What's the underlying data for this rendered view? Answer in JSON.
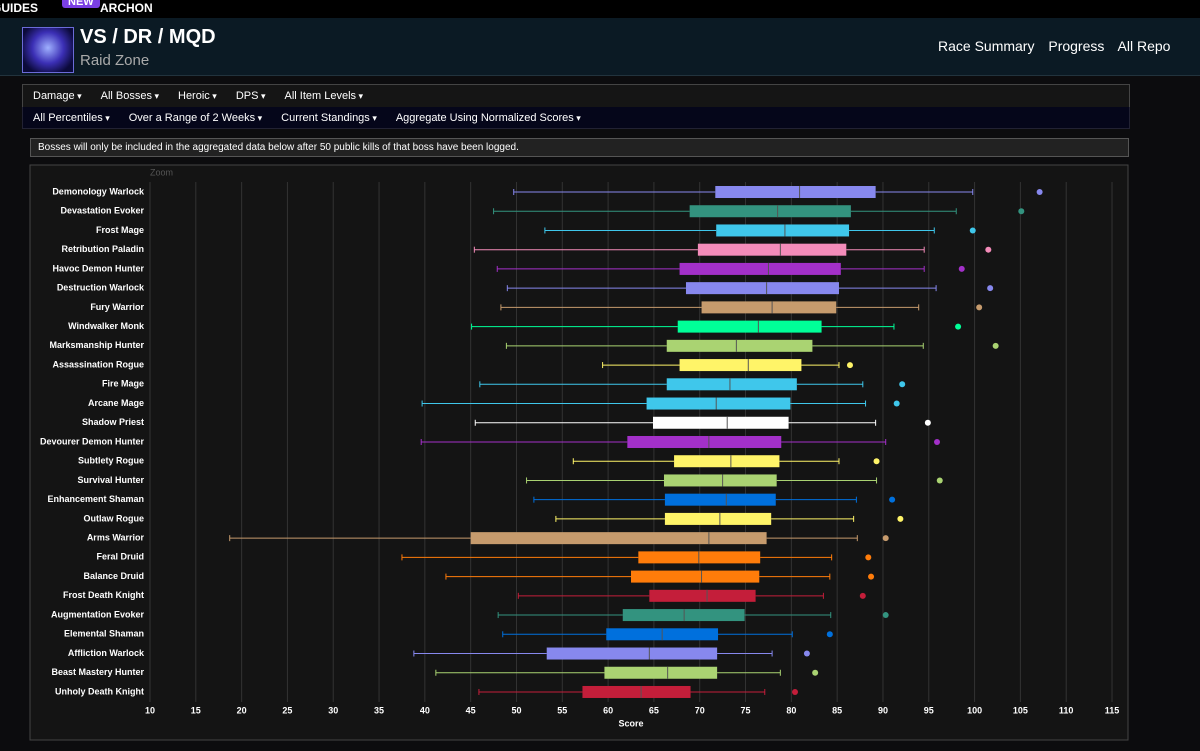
{
  "topbar": {
    "guides": "GUIDES",
    "badge": "NEW",
    "archon": "ARCHON"
  },
  "header": {
    "title": "VS / DR / MQD",
    "subtitle": "Raid Zone",
    "links": [
      "Race Summary",
      "Progress",
      "All Repo"
    ]
  },
  "filters": {
    "row1": [
      "Damage",
      "All Bosses",
      "Heroic",
      "DPS",
      "All Item Levels"
    ],
    "row2": [
      "All Percentiles",
      "Over a Range of 2 Weeks",
      "Current Standings",
      "Aggregate Using Normalized Scores"
    ]
  },
  "notice": "Bosses will only be included in the aggregated data below after 50 public kills of that boss have been logged.",
  "chart_data": {
    "type": "boxplot",
    "zoom_label": "Zoom",
    "x_label": "Score",
    "xlim": [
      10,
      116
    ],
    "xticks": [
      10,
      15,
      20,
      25,
      30,
      35,
      40,
      45,
      50,
      55,
      60,
      65,
      70,
      75,
      80,
      85,
      90,
      95,
      100,
      105,
      110,
      115
    ],
    "grid": true,
    "categories": [
      "Demonology Warlock",
      "Devastation Evoker",
      "Frost Mage",
      "Retribution Paladin",
      "Havoc Demon Hunter",
      "Destruction Warlock",
      "Fury Warrior",
      "Windwalker Monk",
      "Marksmanship Hunter",
      "Assassination Rogue",
      "Fire Mage",
      "Arcane Mage",
      "Shadow Priest",
      "Devourer Demon Hunter",
      "Subtlety Rogue",
      "Survival Hunter",
      "Enhancement Shaman",
      "Outlaw Rogue",
      "Arms Warrior",
      "Feral Druid",
      "Balance Druid",
      "Frost Death Knight",
      "Augmentation Evoker",
      "Elemental Shaman",
      "Affliction Warlock",
      "Beast Mastery Hunter",
      "Unholy Death Knight"
    ],
    "colors": [
      "#8788ee",
      "#33937f",
      "#3fc7eb",
      "#f48cba",
      "#a330c9",
      "#8788ee",
      "#c69b6d",
      "#00ff98",
      "#aad372",
      "#fff468",
      "#3fc7eb",
      "#3fc7eb",
      "#ffffff",
      "#a330c9",
      "#fff468",
      "#aad372",
      "#0070dd",
      "#fff468",
      "#c69b6d",
      "#ff7c0a",
      "#ff7c0a",
      "#c41e3a",
      "#33937f",
      "#0070dd",
      "#8788ee",
      "#aad372",
      "#c41e3a"
    ],
    "low": [
      49.7,
      47.5,
      53.1,
      45.4,
      47.9,
      49.0,
      48.3,
      45.1,
      48.9,
      59.4,
      46.0,
      39.7,
      45.5,
      39.6,
      56.2,
      51.1,
      51.9,
      54.3,
      18.7,
      37.5,
      42.3,
      50.2,
      48.0,
      48.5,
      38.8,
      41.2,
      45.9
    ],
    "q1": [
      71.7,
      68.9,
      71.8,
      69.8,
      67.8,
      68.5,
      70.2,
      67.6,
      66.4,
      67.8,
      66.4,
      64.2,
      64.9,
      62.1,
      67.2,
      66.1,
      66.2,
      66.2,
      45.0,
      63.3,
      62.5,
      64.5,
      61.6,
      59.8,
      53.3,
      59.6,
      57.2
    ],
    "median": [
      80.9,
      78.5,
      79.3,
      78.8,
      77.5,
      77.3,
      77.9,
      76.4,
      74.0,
      75.3,
      73.3,
      71.8,
      73.0,
      71.0,
      73.4,
      72.5,
      72.9,
      72.2,
      71.0,
      69.9,
      70.2,
      70.8,
      68.3,
      65.9,
      64.5,
      66.5,
      63.6
    ],
    "q3": [
      89.2,
      86.5,
      86.3,
      86.0,
      85.4,
      85.2,
      84.9,
      83.3,
      82.3,
      81.1,
      80.6,
      79.9,
      79.7,
      78.9,
      78.7,
      78.4,
      78.3,
      77.8,
      77.3,
      76.6,
      76.5,
      76.1,
      74.9,
      72.0,
      71.9,
      71.9,
      69.0
    ],
    "high": [
      99.8,
      98.0,
      95.6,
      94.5,
      94.5,
      95.8,
      93.9,
      91.2,
      94.4,
      85.2,
      87.8,
      88.1,
      89.2,
      90.3,
      85.2,
      89.3,
      87.1,
      86.8,
      87.2,
      84.4,
      84.2,
      83.5,
      84.3,
      80.1,
      77.9,
      78.8,
      77.1
    ],
    "outliers": [
      107.1,
      105.1,
      99.8,
      101.5,
      98.6,
      101.7,
      100.5,
      98.2,
      102.3,
      86.4,
      92.1,
      91.5,
      94.9,
      95.9,
      89.3,
      96.2,
      91.0,
      91.9,
      90.3,
      88.4,
      88.7,
      87.8,
      90.3,
      84.2,
      81.7,
      82.6,
      80.4
    ]
  }
}
